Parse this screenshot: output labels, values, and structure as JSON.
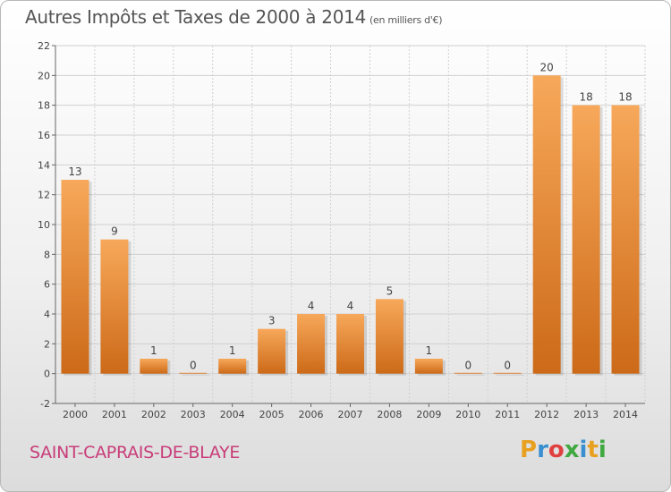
{
  "header": {
    "title": "Autres Impôts et Taxes de 2000 à 2014",
    "unit_note": "(en milliers d'€)"
  },
  "footer": {
    "commune": "SAINT-CAPRAIS-DE-BLAYE",
    "logo_text": "Proxiti",
    "logo_colors": [
      "#e8a020",
      "#3a8fd0",
      "#e04040",
      "#40a840",
      "#3a8fd0",
      "#e8a020",
      "#40a840"
    ]
  },
  "colors": {
    "bar_top": "#f7a85a",
    "bar_bottom": "#cc6a18",
    "grid": "#d0d0d0",
    "axis_text": "#444444"
  },
  "chart_data": {
    "type": "bar",
    "categories": [
      "2000",
      "2001",
      "2002",
      "2003",
      "2004",
      "2005",
      "2006",
      "2007",
      "2008",
      "2009",
      "2010",
      "2011",
      "2012",
      "2013",
      "2014"
    ],
    "values": [
      13,
      9,
      1,
      0,
      1,
      3,
      4,
      4,
      5,
      1,
      0,
      0,
      20,
      18,
      18
    ],
    "ylim": [
      -2,
      22
    ],
    "yticks": [
      -2,
      0,
      2,
      4,
      6,
      8,
      10,
      12,
      14,
      16,
      18,
      20,
      22
    ],
    "grid": true
  }
}
